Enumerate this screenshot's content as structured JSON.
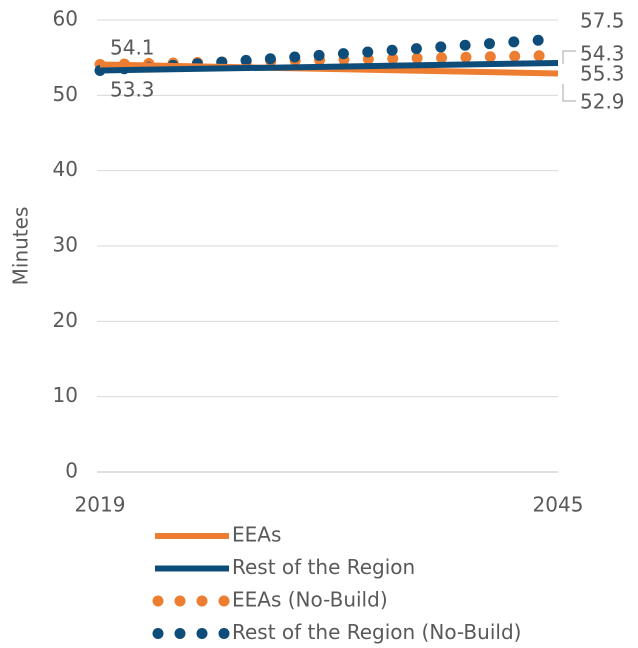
{
  "chart_data": {
    "type": "line",
    "y_label": "Minutes",
    "x": [
      2019,
      2045
    ],
    "xlim": [
      2019,
      2045
    ],
    "xticks": [
      2019,
      2045
    ],
    "ylim": [
      0,
      60
    ],
    "yticks": [
      0,
      10,
      20,
      30,
      40,
      50,
      60
    ],
    "grid": true,
    "legend": "bottom",
    "series": [
      {
        "name": "EEAs",
        "color": "#ED7D31",
        "style": "solid",
        "values": [
          54.1,
          52.9
        ]
      },
      {
        "name": "Rest of the Region",
        "color": "#0E4C7A",
        "style": "solid",
        "values": [
          53.3,
          54.3
        ]
      },
      {
        "name": "EEAs (No-Build)",
        "color": "#ED7D31",
        "style": "dotted",
        "values": [
          54.1,
          55.3
        ]
      },
      {
        "name": "Rest of the Region (No-Build)",
        "color": "#0E4C7A",
        "style": "dotted",
        "values": [
          53.3,
          57.5
        ]
      }
    ]
  }
}
